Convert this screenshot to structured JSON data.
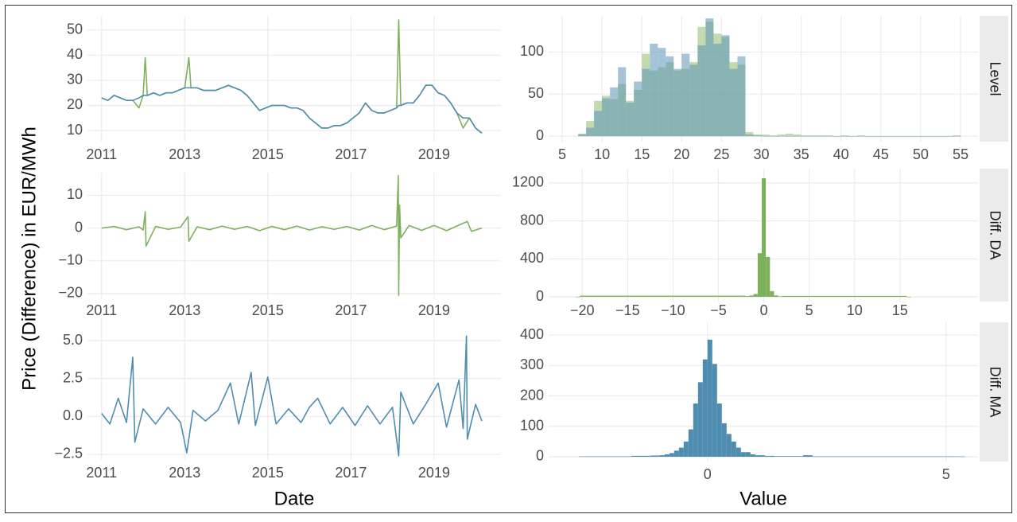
{
  "y_label": "Price (Difference) in EUR/MWh",
  "chart_data": [
    {
      "type": "line",
      "grid": true,
      "xlim": [
        2010.66,
        2020.61
      ],
      "ylim": [
        5.6,
        55.6
      ],
      "xticks": [
        2011,
        2013,
        2015,
        2017,
        2019
      ],
      "yticks": [
        10,
        20,
        30,
        40,
        50
      ],
      "x": [
        2011.0,
        2011.15,
        2011.3,
        2011.45,
        2011.6,
        2011.75,
        2011.9,
        2012.0,
        2012.05,
        2012.1,
        2012.25,
        2012.4,
        2012.55,
        2012.7,
        2012.85,
        2013.0,
        2013.1,
        2013.15,
        2013.3,
        2013.45,
        2013.6,
        2013.75,
        2013.9,
        2014.05,
        2014.2,
        2014.35,
        2014.5,
        2014.65,
        2014.8,
        2014.95,
        2015.1,
        2015.25,
        2015.4,
        2015.55,
        2015.7,
        2015.85,
        2016.0,
        2016.15,
        2016.3,
        2016.45,
        2016.6,
        2016.75,
        2016.9,
        2017.05,
        2017.2,
        2017.35,
        2017.5,
        2017.65,
        2017.8,
        2017.95,
        2018.1,
        2018.15,
        2018.2,
        2018.35,
        2018.5,
        2018.65,
        2018.8,
        2018.95,
        2019.1,
        2019.25,
        2019.4,
        2019.55,
        2019.7,
        2019.85,
        2020.0,
        2020.15
      ],
      "series": [
        {
          "color": "#7fb05c",
          "values": [
            23,
            22,
            24,
            23,
            22,
            22,
            19,
            24,
            39,
            24,
            25,
            24,
            25,
            25,
            26,
            27,
            39,
            27,
            27,
            26,
            26,
            26,
            27,
            28,
            27,
            26,
            24,
            21,
            18,
            19,
            20,
            20,
            20,
            19,
            19,
            18,
            15,
            13,
            11,
            11,
            12,
            12,
            13,
            15,
            17,
            21,
            18,
            17,
            17,
            18,
            19,
            54,
            20,
            21,
            21,
            24,
            28,
            28,
            25,
            24,
            21,
            17,
            11,
            15,
            11,
            9
          ]
        },
        {
          "color": "#4f8db0",
          "values": [
            23,
            22,
            24,
            23,
            22,
            22,
            23,
            24,
            24,
            24,
            25,
            24,
            25,
            25,
            26,
            27,
            27,
            27,
            27,
            26,
            26,
            26,
            27,
            28,
            27,
            26,
            24,
            21,
            18,
            19,
            20,
            20,
            20,
            19,
            19,
            18,
            15,
            13,
            11,
            11,
            12,
            12,
            13,
            15,
            17,
            21,
            18,
            17,
            17,
            18,
            19,
            20,
            20,
            21,
            21,
            24,
            28,
            28,
            25,
            24,
            21,
            17,
            15,
            15,
            11,
            9
          ]
        }
      ]
    },
    {
      "type": "histogram",
      "grid": true,
      "facet": "Level",
      "alpha": 0.55,
      "xlim": [
        3.3,
        57.2
      ],
      "ylim": [
        -6.5,
        143
      ],
      "xticks": [
        5,
        10,
        15,
        20,
        25,
        30,
        35,
        40,
        45,
        50,
        55
      ],
      "yticks": [
        0,
        50,
        100
      ],
      "bins": [
        7,
        8,
        9,
        10,
        11,
        12,
        13,
        14,
        15,
        16,
        17,
        18,
        19,
        20,
        21,
        22,
        23,
        24,
        25,
        26,
        27,
        28,
        29,
        30,
        31,
        32,
        33,
        34,
        35,
        36,
        37,
        38,
        39,
        40,
        41,
        42,
        43,
        44,
        45,
        46,
        47,
        48,
        49,
        50,
        51,
        52,
        53,
        54,
        55
      ],
      "series": [
        {
          "color": "#8fbd6c",
          "values": [
            3,
            18,
            42,
            48,
            44,
            62,
            42,
            55,
            98,
            78,
            82,
            88,
            78,
            80,
            88,
            130,
            136,
            122,
            118,
            88,
            85,
            5,
            2,
            2,
            1,
            2,
            3,
            2,
            1,
            1,
            1,
            1,
            0,
            1,
            0,
            1,
            0,
            0,
            0,
            0,
            0,
            0,
            0,
            0,
            0,
            0,
            0,
            1
          ]
        },
        {
          "color": "#5b93b8",
          "values": [
            2,
            10,
            30,
            45,
            58,
            82,
            40,
            65,
            80,
            110,
            105,
            95,
            80,
            98,
            85,
            108,
            140,
            110,
            120,
            80,
            95,
            2,
            1,
            0,
            0,
            0,
            0,
            0,
            0,
            0,
            0,
            0,
            0,
            0,
            0,
            0,
            0,
            0,
            0,
            0,
            0,
            0,
            0,
            0,
            0,
            0,
            0,
            0
          ]
        }
      ]
    },
    {
      "type": "line",
      "grid": true,
      "xlim": [
        2010.66,
        2020.61
      ],
      "ylim": [
        -21.7,
        16.9
      ],
      "xticks": [
        2011,
        2013,
        2015,
        2017,
        2019
      ],
      "yticks": [
        {
          "value": -20,
          "label": "−20"
        },
        {
          "value": -10,
          "label": "−10"
        },
        0,
        10
      ],
      "x": [
        2011.0,
        2011.3,
        2011.6,
        2011.9,
        2012.0,
        2012.05,
        2012.07,
        2012.3,
        2012.6,
        2012.9,
        2013.08,
        2013.1,
        2013.3,
        2013.6,
        2013.9,
        2014.2,
        2014.5,
        2014.8,
        2015.1,
        2015.4,
        2015.7,
        2016.0,
        2016.3,
        2016.6,
        2016.9,
        2017.2,
        2017.5,
        2017.8,
        2018.1,
        2018.14,
        2018.15,
        2018.17,
        2018.2,
        2018.4,
        2018.7,
        2019.0,
        2019.3,
        2019.6,
        2019.8,
        2019.9,
        2020.15
      ],
      "series": [
        {
          "color": "#7fb05c",
          "values": [
            0,
            0.5,
            -0.5,
            0.4,
            -0.6,
            5,
            -5.5,
            0.5,
            -0.4,
            0.3,
            3.5,
            -4,
            0.4,
            -0.5,
            0.6,
            -0.4,
            0.5,
            -0.8,
            0.5,
            -0.5,
            0.6,
            -0.6,
            0.4,
            -0.4,
            0.5,
            -0.6,
            0.8,
            -0.5,
            0.6,
            16,
            -20.5,
            7,
            -3,
            0.8,
            -0.7,
            0.8,
            -0.8,
            0.9,
            2,
            -1,
            0
          ]
        }
      ]
    },
    {
      "type": "histogram",
      "grid": true,
      "facet": "Diff. DA",
      "alpha": 1,
      "xlim": [
        -23.7,
        23.6
      ],
      "ylim": [
        -50,
        1350
      ],
      "xticks": [
        {
          "value": -20,
          "label": "−20"
        },
        {
          "value": -15,
          "label": "−15"
        },
        {
          "value": -10,
          "label": "−10"
        },
        {
          "value": -5,
          "label": "−5"
        },
        0,
        5,
        10,
        15
      ],
      "yticks": [
        0,
        400,
        800,
        1200
      ],
      "bins": [
        -20.7,
        -20.25,
        -2.025,
        -1.575,
        -1.125,
        -0.675,
        -0.225,
        0.225,
        0.675,
        1.125,
        1.575,
        2.025,
        15.75,
        16.2
      ],
      "series": [
        {
          "color": "#7fb05c",
          "values": [
            1,
            12,
            8,
            15,
            30,
            460,
            1250,
            420,
            60,
            15,
            6,
            10,
            1
          ]
        }
      ]
    },
    {
      "type": "line",
      "grid": true,
      "xlabel": "Date",
      "xlim": [
        2010.66,
        2020.61
      ],
      "ylim": [
        -2.87,
        6.47
      ],
      "xticks": [
        2011,
        2013,
        2015,
        2017,
        2019
      ],
      "yticks": [
        {
          "value": -2.5,
          "label": "−2.5"
        },
        {
          "value": 0,
          "label": "0.0"
        },
        2.5,
        {
          "value": 5,
          "label": "5.0"
        }
      ],
      "x": [
        2011.0,
        2011.2,
        2011.4,
        2011.6,
        2011.75,
        2011.8,
        2012.0,
        2012.3,
        2012.6,
        2012.9,
        2013.05,
        2013.2,
        2013.5,
        2013.8,
        2014.1,
        2014.3,
        2014.6,
        2014.7,
        2015.0,
        2015.2,
        2015.5,
        2015.8,
        2016.0,
        2016.2,
        2016.5,
        2016.8,
        2017.1,
        2017.4,
        2017.7,
        2018.0,
        2018.15,
        2018.2,
        2018.5,
        2018.8,
        2019.1,
        2019.3,
        2019.6,
        2019.7,
        2019.78,
        2019.8,
        2020.0,
        2020.15
      ],
      "series": [
        {
          "color": "#4f8db0",
          "values": [
            0.2,
            -0.5,
            1.2,
            -0.4,
            3.9,
            -1.7,
            0.5,
            -0.5,
            0.6,
            -0.4,
            -2.4,
            0.4,
            -0.3,
            0.4,
            2.2,
            -0.5,
            2.9,
            -0.6,
            2.6,
            -0.5,
            0.5,
            -0.4,
            0.6,
            1.2,
            -0.5,
            0.6,
            -0.6,
            0.7,
            -0.5,
            0.6,
            -2.6,
            1.6,
            -0.5,
            0.8,
            2.2,
            -0.7,
            2.4,
            -0.8,
            5.3,
            -1.5,
            0.8,
            -0.3
          ]
        }
      ]
    },
    {
      "type": "histogram",
      "grid": true,
      "facet": "Diff. MA",
      "xlabel": "Value",
      "alpha": 1,
      "xlim": [
        -3.33,
        5.67
      ],
      "ylim": [
        -15.7,
        442
      ],
      "xticks": [
        0,
        5
      ],
      "yticks": [
        0,
        100,
        200,
        300,
        400
      ],
      "bins": [
        -2.7,
        -2.6,
        -1.6,
        -1.2,
        -1.0,
        -0.9,
        -0.8,
        -0.7,
        -0.6,
        -0.5,
        -0.4,
        -0.3,
        -0.2,
        -0.1,
        0,
        0.1,
        0.2,
        0.3,
        0.4,
        0.5,
        0.6,
        0.7,
        0.8,
        0.9,
        1.0,
        1.2,
        1.4,
        2.0,
        2.2,
        5.2,
        5.4
      ],
      "series": [
        {
          "color": "#4f8db0",
          "values": [
            1,
            1,
            3,
            4,
            5,
            8,
            12,
            20,
            30,
            50,
            90,
            175,
            245,
            320,
            385,
            305,
            175,
            110,
            75,
            50,
            30,
            15,
            15,
            8,
            5,
            3,
            2,
            5,
            1,
            1
          ]
        }
      ]
    }
  ]
}
